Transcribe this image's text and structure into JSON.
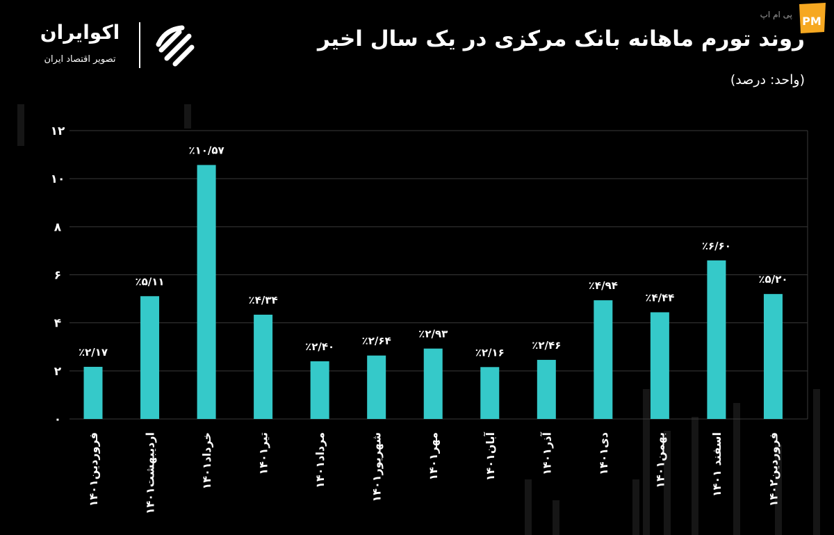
{
  "header": {
    "title": "روند تورم ماهانه بانک مرکزی در یک سال اخیر",
    "unit": "(واحد: درصد)"
  },
  "logo": {
    "name": "اکوایران",
    "tagline": "تصویر اقتصاد ایران",
    "icon": "ecoiran-logo-icon"
  },
  "watermark": {
    "text": "پی ام اپ",
    "badge": "PM"
  },
  "colors": {
    "background": "#000000",
    "bar": "#35c9c9",
    "grid": "#3a3a3a",
    "text": "#ffffff",
    "badge": "#f6a821"
  },
  "chart_data": {
    "type": "bar",
    "title": "روند تورم ماهانه بانک مرکزی در یک سال اخیر",
    "ylabel": "(واحد: درصد)",
    "xlabel": "",
    "ylim": [
      0,
      12
    ],
    "yticks": [
      0,
      2,
      4,
      6,
      8,
      10,
      12
    ],
    "ytick_labels": [
      "۰",
      "۲",
      "۴",
      "۶",
      "۸",
      "۱۰",
      "۱۲"
    ],
    "grid": true,
    "categories": [
      "فروردین۱۴۰۱",
      "اردیبهشت۱۴۰۱",
      "خرداد۱۴۰۱",
      "تیر۱۴۰۱",
      "مرداد۱۴۰۱",
      "شهریور۱۴۰۱",
      "مهر۱۴۰۱",
      "آبان۱۴۰۱",
      "آذر۱۴۰۱",
      "دی۱۴۰۱",
      "بهمن۱۴۰۱",
      "اسفند ۱۴۰۱",
      "فروردین۱۴۰۲"
    ],
    "values": [
      2.17,
      5.11,
      10.57,
      4.34,
      2.4,
      2.64,
      2.93,
      2.16,
      2.46,
      4.94,
      4.44,
      6.6,
      5.2
    ],
    "data_labels": [
      "٪۲/۱۷",
      "٪۵/۱۱",
      "٪۱۰/۵۷",
      "٪۴/۳۴",
      "٪۲/۴۰",
      "٪۲/۶۴",
      "٪۲/۹۳",
      "٪۲/۱۶",
      "٪۲/۴۶",
      "٪۴/۹۴",
      "٪۴/۴۴",
      "٪۶/۶۰",
      "٪۵/۲۰"
    ]
  }
}
